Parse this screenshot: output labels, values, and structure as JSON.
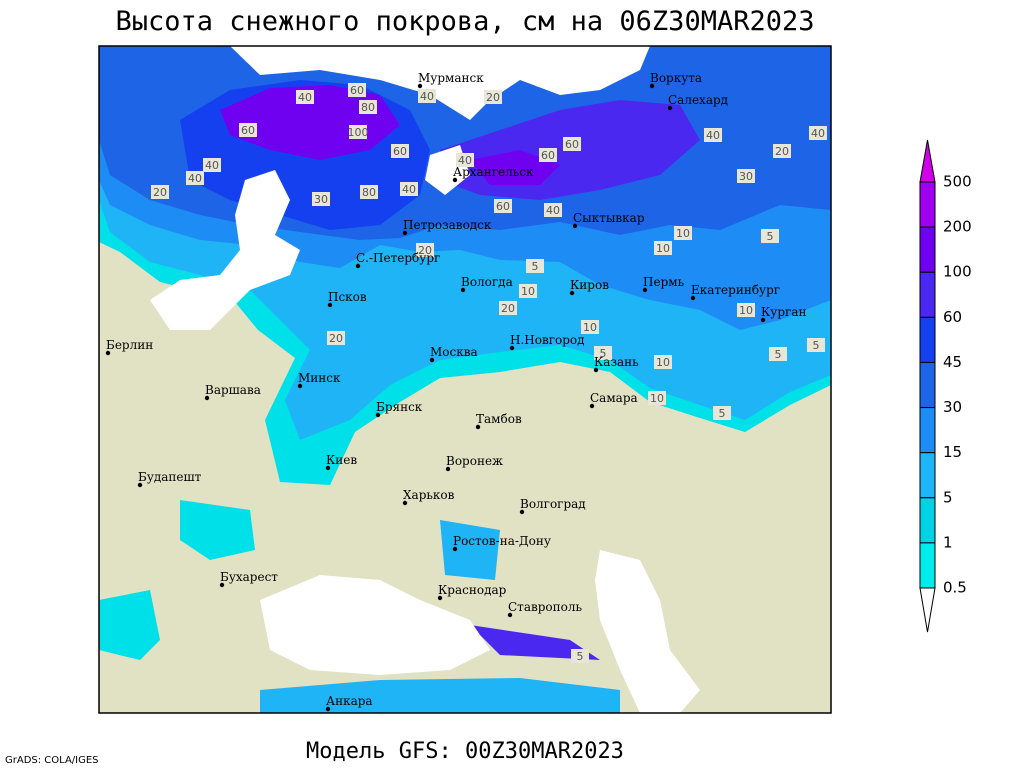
{
  "header": {
    "title": "Высота снежного покрова, см на 06Z30MAR2023"
  },
  "footer": {
    "model": "Модель GFS: 00Z30MAR2023",
    "credit": "GrADS: COLA/IGES"
  },
  "cities": [
    "Мурманск",
    "Воркута",
    "Салехард",
    "Архангельск",
    "Петрозаводск",
    "Сыктывкар",
    "С.-Петербург",
    "Вологда",
    "Киров",
    "Пермь",
    "Екатеринбург",
    "Курган",
    "Псков",
    "Берлин",
    "Н.Новгород",
    "Москва",
    "Казань",
    "Минск",
    "Варшава",
    "Самара",
    "Брянск",
    "Тамбов",
    "Киев",
    "Воронеж",
    "Будапешт",
    "Харьков",
    "Волгоград",
    "Ростов-на-Дону",
    "Бухарест",
    "Краснодар",
    "Ставрополь",
    "Анкара"
  ],
  "contour_labels": [
    40,
    60,
    80,
    100,
    60,
    40,
    20,
    40,
    60,
    20,
    40,
    40,
    60,
    80,
    40,
    30,
    20,
    60,
    40,
    60,
    40,
    30,
    20,
    40,
    10,
    5,
    10,
    5,
    10,
    20,
    10,
    5,
    10,
    10,
    5,
    5,
    20,
    10,
    5,
    5
  ],
  "legend": {
    "levels": [
      500,
      200,
      100,
      60,
      45,
      30,
      15,
      5,
      1,
      0.5
    ],
    "colors": [
      "#d000e8",
      "#a000f0",
      "#7000f0",
      "#4a28f0",
      "#1440f0",
      "#1e64e6",
      "#1e8cf5",
      "#1eb4f5",
      "#00d2e6",
      "#00ebeb",
      "#a0f0f5",
      "#ffffff"
    ]
  }
}
